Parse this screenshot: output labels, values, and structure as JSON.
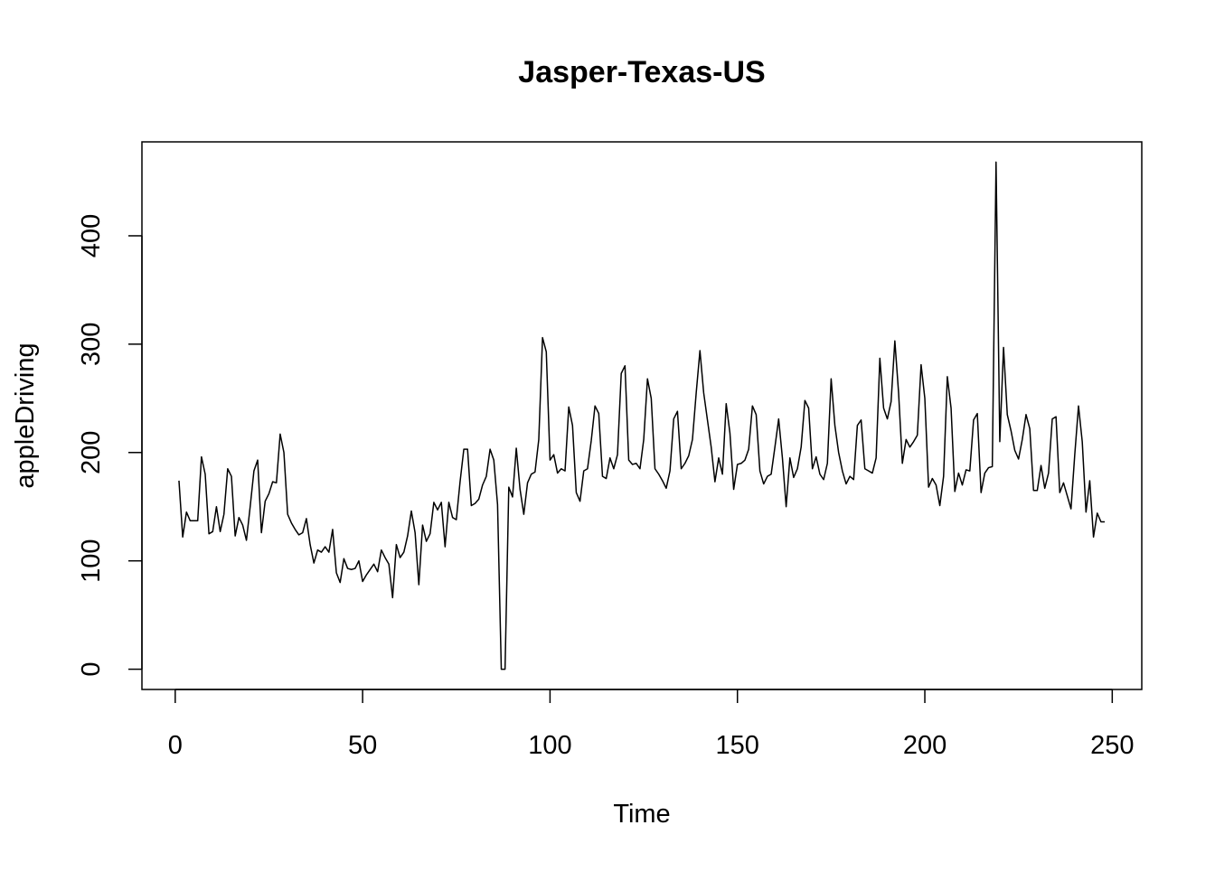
{
  "chart_data": {
    "type": "line",
    "title": "Jasper-Texas-US",
    "xlabel": "Time",
    "ylabel": "appleDriving",
    "x": [
      1,
      2,
      3,
      4,
      5,
      6,
      7,
      8,
      9,
      10,
      11,
      12,
      13,
      14,
      15,
      16,
      17,
      18,
      19,
      20,
      21,
      22,
      23,
      24,
      25,
      26,
      27,
      28,
      29,
      30,
      31,
      32,
      33,
      34,
      35,
      36,
      37,
      38,
      39,
      40,
      41,
      42,
      43,
      44,
      45,
      46,
      47,
      48,
      49,
      50,
      51,
      52,
      53,
      54,
      55,
      56,
      57,
      58,
      59,
      60,
      61,
      62,
      63,
      64,
      65,
      66,
      67,
      68,
      69,
      70,
      71,
      72,
      73,
      74,
      75,
      76,
      77,
      78,
      79,
      80,
      81,
      82,
      83,
      84,
      85,
      86,
      87,
      88,
      89,
      90,
      91,
      92,
      93,
      94,
      95,
      96,
      97,
      98,
      99,
      100,
      101,
      102,
      103,
      104,
      105,
      106,
      107,
      108,
      109,
      110,
      111,
      112,
      113,
      114,
      115,
      116,
      117,
      118,
      119,
      120,
      121,
      122,
      123,
      124,
      125,
      126,
      127,
      128,
      129,
      130,
      131,
      132,
      133,
      134,
      135,
      136,
      137,
      138,
      139,
      140,
      141,
      142,
      143,
      144,
      145,
      146,
      147,
      148,
      149,
      150,
      151,
      152,
      153,
      154,
      155,
      156,
      157,
      158,
      159,
      160,
      161,
      162,
      163,
      164,
      165,
      166,
      167,
      168,
      169,
      170,
      171,
      172,
      173,
      174,
      175,
      176,
      177,
      178,
      179,
      180,
      181,
      182,
      183,
      184,
      185,
      186,
      187,
      188,
      189,
      190,
      191,
      192,
      193,
      194,
      195,
      196,
      197,
      198,
      199,
      200,
      201,
      202,
      203,
      204,
      205,
      206,
      207,
      208,
      209,
      210,
      211,
      212,
      213,
      214,
      215,
      216,
      217,
      218,
      219,
      220,
      221,
      222,
      223,
      224,
      225,
      226,
      227,
      228,
      229,
      230,
      231,
      232,
      233,
      234,
      235,
      236,
      237,
      238,
      239,
      240,
      241,
      242,
      243,
      244,
      245,
      246,
      247,
      248
    ],
    "series": [
      {
        "name": "appleDriving",
        "color": "#000000",
        "values": [
          174,
          122,
          145,
          137,
          137,
          137,
          196,
          180,
          125,
          127,
          150,
          127,
          143,
          185,
          178,
          123,
          140,
          133,
          119,
          150,
          183,
          193,
          126,
          155,
          162,
          173,
          172,
          217,
          200,
          143,
          135,
          129,
          124,
          126,
          139,
          115,
          98,
          110,
          108,
          113,
          108,
          129,
          89,
          80,
          102,
          93,
          92,
          93,
          100,
          81,
          87,
          92,
          97,
          90,
          110,
          103,
          97,
          66,
          115,
          103,
          108,
          123,
          146,
          126,
          78,
          133,
          118,
          125,
          154,
          147,
          154,
          113,
          154,
          140,
          138,
          173,
          203,
          203,
          151,
          153,
          157,
          170,
          178,
          203,
          193,
          152,
          0,
          0,
          168,
          159,
          204,
          166,
          143,
          172,
          180,
          182,
          212,
          306,
          293,
          193,
          198,
          181,
          185,
          183,
          242,
          225,
          163,
          155,
          183,
          185,
          211,
          243,
          236,
          178,
          176,
          195,
          185,
          198,
          273,
          280,
          193,
          189,
          190,
          185,
          212,
          268,
          250,
          185,
          180,
          174,
          167,
          183,
          231,
          238,
          185,
          190,
          197,
          212,
          255,
          294,
          255,
          230,
          205,
          173,
          195,
          180,
          245,
          218,
          166,
          189,
          190,
          193,
          203,
          243,
          235,
          183,
          171,
          178,
          180,
          205,
          231,
          195,
          150,
          195,
          177,
          185,
          205,
          248,
          241,
          185,
          196,
          180,
          175,
          190,
          268,
          225,
          200,
          183,
          171,
          178,
          175,
          225,
          230,
          185,
          183,
          181,
          195,
          287,
          241,
          231,
          247,
          303,
          255,
          190,
          212,
          205,
          210,
          216,
          281,
          250,
          168,
          176,
          170,
          151,
          178,
          270,
          241,
          164,
          181,
          170,
          184,
          183,
          230,
          236,
          163,
          181,
          186,
          187,
          468,
          210,
          297,
          235,
          220,
          202,
          194,
          212,
          235,
          222,
          165,
          165,
          188,
          167,
          181,
          231,
          233,
          163,
          172,
          160,
          148,
          198,
          243,
          210,
          145,
          174,
          122,
          144,
          136,
          136
        ]
      }
    ],
    "xlim": [
      -8.88,
      257.88
    ],
    "ylim": [
      -18.7,
      486.7
    ],
    "xticks": [
      0,
      50,
      100,
      150,
      200,
      250
    ],
    "yticks": [
      0,
      100,
      200,
      300,
      400
    ]
  }
}
